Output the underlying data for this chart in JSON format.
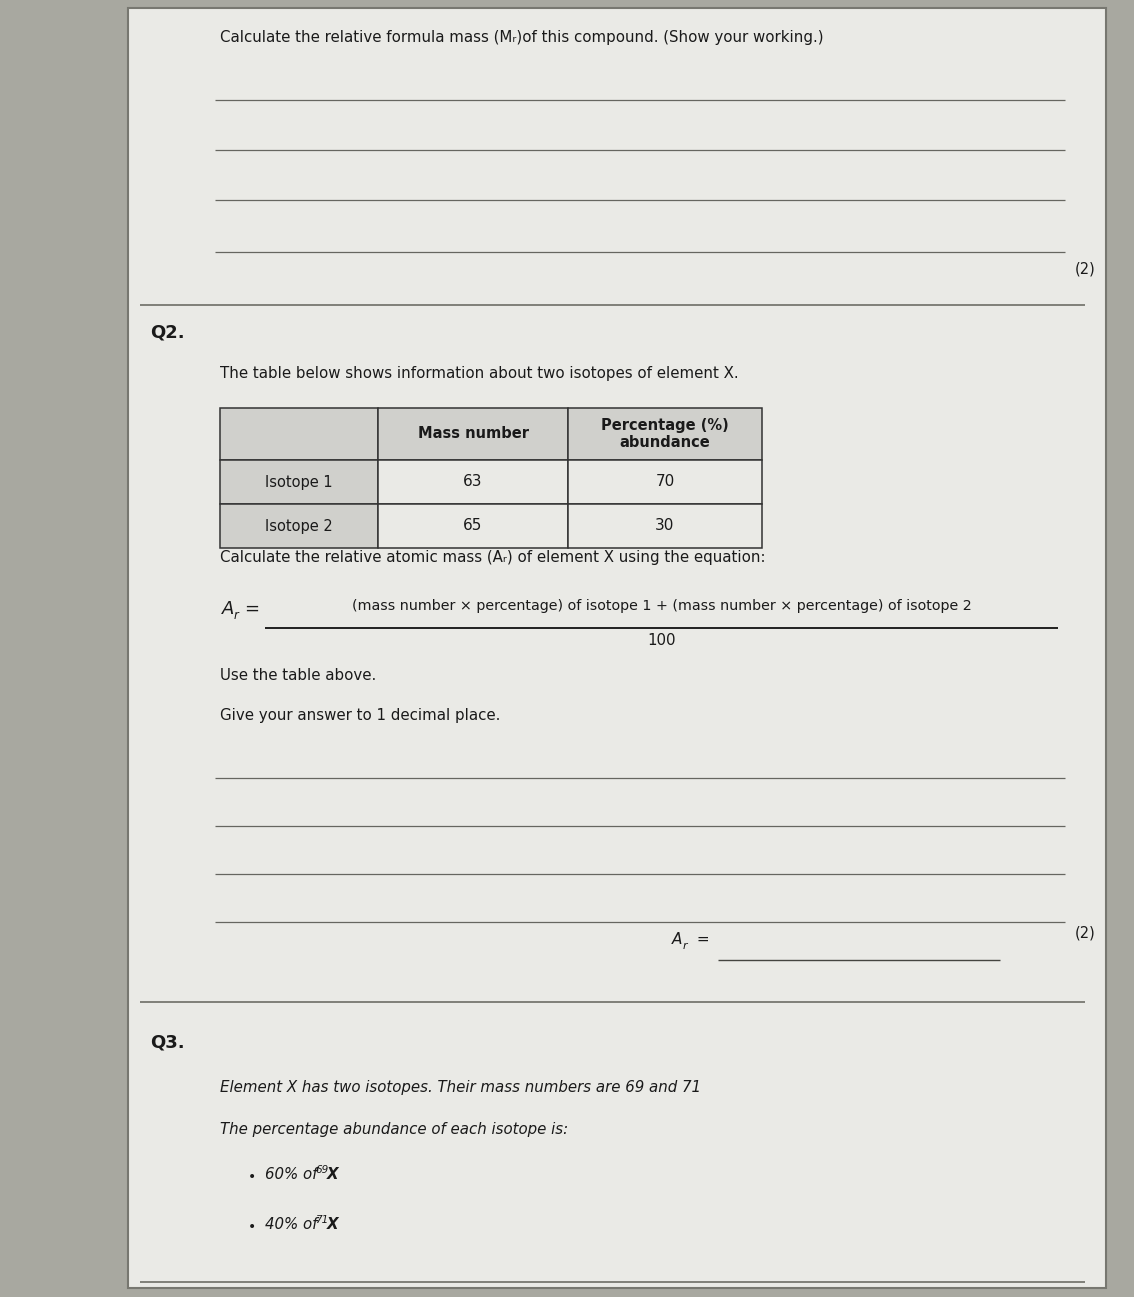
{
  "outer_bg": "#a8a8a0",
  "paper_bg": "#eaeae6",
  "border_color": "#888880",
  "text_color": "#1a1a1a",
  "line_color": "#666660",
  "table_header_bg": "#d0d0cc",
  "table_cell_bg": "#eaeae6",
  "q1_text": "Calculate the relative formula mass (Mᵣ)of this compound. (Show your working.)",
  "q1_marks": "(2)",
  "q2_label": "Q2.",
  "q2_intro": "The table below shows information about two isotopes of element X.",
  "table_col1_header": "Mass number",
  "table_col2_header": "Percentage (%)\nabundance",
  "table_row1": [
    "Isotope 1",
    "63",
    "70"
  ],
  "table_row2": [
    "Isotope 2",
    "65",
    "30"
  ],
  "q2_eq_intro": "Calculate the relative atomic mass (Aᵣ) of element X using the equation:",
  "eq_numerator": "(mass number × percentage) of isotope 1 + (mass number × percentage) of isotope 2",
  "eq_denominator": "100",
  "q2_use": "Use the table above.",
  "q2_decimal": "Give your answer to 1 decimal place.",
  "q2_marks": "(2)",
  "q3_label": "Q3.",
  "q3_text": "Element X has two isotopes. Their mass numbers are 69 and 71",
  "q3_abundance": "The percentage abundance of each isotope is:",
  "q3_b1_pct": "60% of ",
  "q3_b1_sup": "69",
  "q3_b1_el": "X",
  "q3_b2_pct": "40% of ",
  "q3_b2_sup": "71",
  "q3_b2_el": "X"
}
